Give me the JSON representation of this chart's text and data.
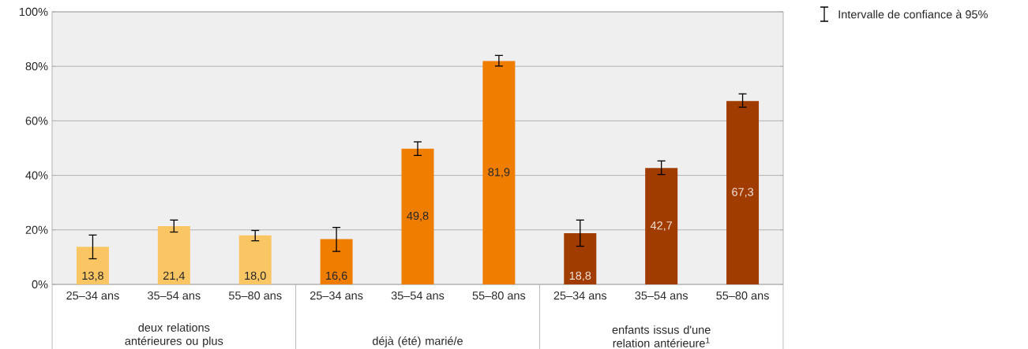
{
  "chart_data": {
    "type": "bar",
    "categories": [
      "25–34 ans",
      "35–54 ans",
      "55–80 ans",
      "25–34 ans",
      "35–54 ans",
      "55–80 ans",
      "25–34 ans",
      "35–54 ans",
      "55–80 ans"
    ],
    "series": [
      {
        "color": "#fac663",
        "values": [
          13.8,
          21.4,
          18.0,
          null,
          null,
          null,
          null,
          null,
          null
        ],
        "errors": [
          [
            9.4,
            18.1
          ],
          [
            19.2,
            23.6
          ],
          [
            16.0,
            19.8
          ],
          null,
          null,
          null,
          null,
          null,
          null
        ],
        "value_labels": [
          "13,8",
          "21,4",
          "18,0",
          null,
          null,
          null,
          null,
          null,
          null
        ]
      },
      {
        "color": "#ef7d00",
        "values": [
          null,
          null,
          null,
          16.6,
          49.8,
          81.9,
          null,
          null,
          null
        ],
        "errors": [
          null,
          null,
          null,
          [
            12.1,
            20.9
          ],
          [
            47.3,
            52.3
          ],
          [
            80.1,
            84.0
          ],
          null,
          null,
          null
        ],
        "value_labels": [
          null,
          null,
          null,
          "16,6",
          "49,8",
          "81,9",
          null,
          null,
          null
        ]
      },
      {
        "color": "#a03c00",
        "values": [
          null,
          null,
          null,
          null,
          null,
          null,
          18.8,
          42.7,
          67.3
        ],
        "errors": [
          null,
          null,
          null,
          null,
          null,
          null,
          [
            14.0,
            23.6
          ],
          [
            40.3,
            45.3
          ],
          [
            65.0,
            69.9
          ]
        ],
        "value_labels": [
          null,
          null,
          null,
          null,
          null,
          null,
          "18,8",
          "42,7",
          "67,3"
        ]
      }
    ],
    "ylim": [
      0,
      100
    ],
    "yticks": [
      {
        "value": 0,
        "label": "0%"
      },
      {
        "value": 20,
        "label": "20%"
      },
      {
        "value": 40,
        "label": "40%"
      },
      {
        "value": 60,
        "label": "60%"
      },
      {
        "value": 80,
        "label": "80%"
      },
      {
        "value": 100,
        "label": "100%"
      }
    ],
    "grid": "y",
    "annotations": [
      "Intervalle de confiance à 95%",
      "deux relations antérieures ou plus",
      "déjà (été) marié/e",
      "enfants issus d'une relation antérieure$^{1}$"
    ]
  }
}
